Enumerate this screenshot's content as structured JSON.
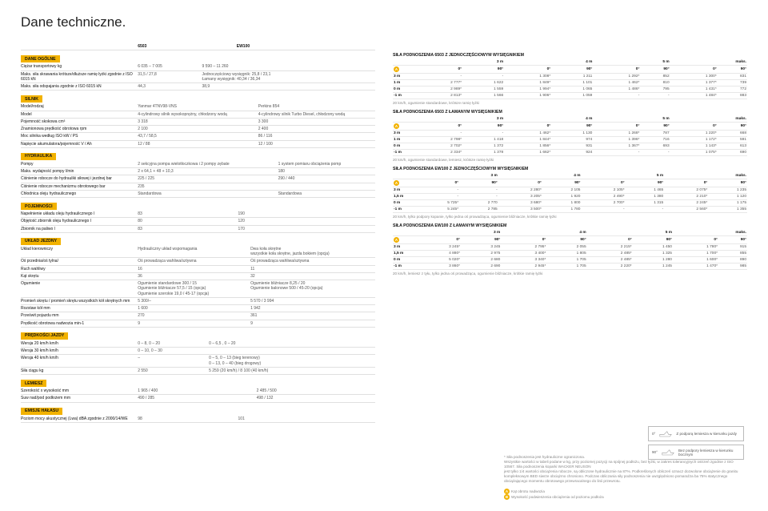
{
  "title": "Dane techniczne.",
  "left": {
    "colHead": [
      "",
      "6503",
      "EW100"
    ],
    "sections": [
      {
        "head": "DANE OGÓLNE",
        "rows": [
          [
            "Ciężar transportowy kg",
            "6 035 – 7 005",
            "9 590 – 11 260"
          ],
          [
            "Maks. siła skrawania krótsze/dłuższe ramię łyżki zgodnie z ISO 6015 kN",
            "31,5 / 27,8",
            "Jednoczęściowy wysięgnik: 25,8 / 23,1\nŁamany wysięgnik: 40,34 / 36,34"
          ],
          [
            "Maks. siła odspajania zgodnie z ISO 6015 kN",
            "44,3",
            "38,9"
          ]
        ]
      },
      {
        "head": "SILNIK",
        "rows": [
          [
            "Model/rodzaj",
            "Yanmar 4TNV98-VNS",
            "Perkins 854"
          ],
          [
            "Model",
            "4-cylindrowy silnik wysokoprężny, chłodzony wodą",
            "4-cylindrowy silnik Turbo Diesel, chłodzony wodą"
          ],
          [
            "Pojemność skokowa cm³",
            "3 318",
            "3 300"
          ],
          [
            "Znamionowa prędkość obrotowa rpm",
            "2 100",
            "2 400"
          ],
          [
            "Moc silnika według ISO kW / PS",
            "43,7 / 58,5",
            "86 / 116"
          ],
          [
            "Napięcie akumulatora/pojemność V / Ah",
            "12 / 88",
            "12 / 100"
          ]
        ]
      },
      {
        "head": "HYDRAULIKA",
        "rows": [
          [
            "Pompy",
            "2 sekcyjna pompa wielotłoczkowa i 2 pompy zębate",
            "1 system pomiaru obciążenia pomp"
          ],
          [
            "Maks. wydajność pompy l/min",
            "2 x 64,1 + 48 + 10,3",
            "180"
          ],
          [
            "Ciśnienie robocze do hydrauliki siłowej i jezdnej bar",
            "225 / 225",
            "290 / 440"
          ],
          [
            "Ciśnienie robocze mechanizmu obrotowego bar",
            "235",
            ""
          ],
          [
            "Chłodnica oleju hydraulicznego",
            "Standardowa",
            "Standardowa"
          ]
        ]
      },
      {
        "head": "POJEMNOŚCI",
        "rows": [
          [
            "Napełnienie układu oleju hydraulicznego l",
            "83",
            "190"
          ],
          [
            "Objętość zbiornik oleju hydraulicznego l",
            "80",
            "120"
          ],
          [
            "Zbiornik na paliwo l",
            "83",
            "170"
          ]
        ]
      },
      {
        "head": "UKŁAD JEZDNY",
        "rows": [
          [
            "Układ kierowniczy",
            "Hydrauliczny układ wspomagania",
            "Dwa koła skrętne\nwszystkie koła skrętne, jazda bokiem (opcja)"
          ],
          [
            "Oś przednia/oś tylna/",
            "Oś prowadząca wahliwa/sztywna",
            "Oś prowadząca wahliwa/sztywna"
          ],
          [
            "Ruch wahliwy",
            "16",
            "11"
          ],
          [
            "Kąt skrętu",
            "36",
            "32"
          ],
          [
            "Ogumienie",
            "Ogumienie standardowe 300 / 15\nOgumienie bliźniacze 57,5 / 15 (opcja)\nOgumienie szerokie 19,0 / 45-17 (opcja)",
            "Ogumienie bliźniacze 8,25 / 20\nOgumienie balonowe 500 / 45-20 (opcja)"
          ],
          [
            "Promień skrętu / promień skrętu wszystkich kół skrętnych mm",
            "5 300/–",
            "5 570 / 3 994"
          ],
          [
            "Rozstaw kół mm",
            "1 600",
            "1 942"
          ],
          [
            "Prześwit pojazdu mm",
            "270",
            "361"
          ],
          [
            "Prędkość obrotowa nadwozia min-1",
            "9",
            "9"
          ]
        ]
      },
      {
        "head": "PRĘDKOŚCI JAZDY",
        "rows": [
          [
            "Wersja 20 km/h km/h",
            "0 – 8, 0 – 20",
            "0 – 6,5 , 0 – 20"
          ],
          [
            "Wersja 30 km/h km/h",
            "0 – 10, 0 – 30",
            ""
          ],
          [
            "Wersja 40 km/h km/h",
            "–",
            "0 – 5, 0 – 13 (bieg terenowy)\n0 – 13, 0 – 40 (bieg drogowy)"
          ],
          [
            "Siła ciągu kg",
            "2 550",
            "5 259 (20 km/h) / 8 100 (40 km/h)"
          ]
        ]
      },
      {
        "head": "LEMIESZ",
        "rows": [
          [
            "Szerokość x wysokość mm",
            "1 965 / 400",
            "2 485 / 500"
          ],
          [
            "Suw nad/pod podłożem mm",
            "490 / 285",
            "498 / 132"
          ]
        ]
      },
      {
        "head": "EMISJE HAŁASU",
        "rows": [
          [
            "Poziom mocy akustycznej (Lwa) dBA zgodnie z 2000/14/WE",
            "98",
            "101"
          ]
        ]
      }
    ]
  },
  "right": {
    "tables": [
      {
        "title": "SIŁA PODNOSZENIA 6503 Z JEDNOCZĘŚCIOWYM WYSIĘGNIKIEM",
        "dist": [
          "3 m",
          "4 m",
          "5 m",
          "maks."
        ],
        "sub": [
          "0°",
          "90°",
          "0°",
          "90°",
          "0°",
          "90°",
          "0°",
          "90°"
        ],
        "marker": "B",
        "rows": [
          [
            "3 m",
            "-",
            "-",
            "1 308*",
            "1 211",
            "1 292*",
            "852",
            "1 300*",
            "831"
          ],
          [
            "1 m",
            "2 777*",
            "1 622",
            "1 849*",
            "1 101",
            "1 462*",
            "810",
            "1 377*",
            "739"
          ],
          [
            "0 m",
            "2 989*",
            "1 559",
            "1 994*",
            "1 065",
            "1 486*",
            "795",
            "1 431*",
            "772"
          ],
          [
            "-1 m",
            "2 813*",
            "1 566",
            "1 906*",
            "1 059",
            "-",
            "-",
            "1 484*",
            "883"
          ]
        ],
        "note": "20 km/h, ogumienie standardowe, krótsze ramię łyżki"
      },
      {
        "title": "SIŁA PODNOSZENIA 6503 Z ŁAMANYM WYSIĘGNIKIEM",
        "dist": [
          "3 m",
          "4 m",
          "5 m",
          "maks."
        ],
        "sub": [
          "0°",
          "90°",
          "0°",
          "90°",
          "0°",
          "90°",
          "0°",
          "90°"
        ],
        "marker": "B",
        "rows": [
          [
            "3 m",
            "-",
            "-",
            "1 462*",
            "1 130",
            "1 268*",
            "787",
            "1 220*",
            "668"
          ],
          [
            "1 m",
            "2 798*",
            "1 418",
            "1 844*",
            "974",
            "1 396*",
            "716",
            "1 172*",
            "591"
          ],
          [
            "0 m",
            "2 702*",
            "1 372",
            "1 856*",
            "931",
            "1 367*",
            "693",
            "1 143*",
            "613"
          ],
          [
            "-1 m",
            "2 334*",
            "1 378",
            "1 662*",
            "924",
            "-",
            "-",
            "1 075*",
            "690"
          ]
        ],
        "note": "20 km/h, ogumienie standardowe, lemiesz, krótsze ramię łyżki"
      },
      {
        "title": "SIŁA PODNOSZENIA EW100 Z JEDNOCZĘŚCIOWYM WYSIĘGNIKIEM",
        "dist": [
          "3 m",
          "4 m",
          "5 m",
          "maks."
        ],
        "sub": [
          "0°",
          "90°",
          "0°",
          "90°",
          "0°",
          "90°",
          "0°",
          "90°"
        ],
        "marker": "B",
        "rows": [
          [
            "3 m",
            "-",
            "-",
            "2 280*",
            "2 105",
            "2 105*",
            "1 465",
            "2 075*",
            "1 235"
          ],
          [
            "1,5 m",
            "-",
            "-",
            "3 205*",
            "1 920",
            "2 490*",
            "1 380",
            "2 210*",
            "1 120"
          ],
          [
            "0 m",
            "5 725*",
            "2 770",
            "3 680*",
            "1 800",
            "2 700*",
            "1 315",
            "2 245*",
            "1 175"
          ],
          [
            "-1 m",
            "5 245*",
            "2 785",
            "3 500*",
            "1 780",
            "-",
            "-",
            "2 560*",
            "1 355"
          ]
        ],
        "note": "20 km/h, tylko podpory kopanie, tylko jedna oś prowadząca, ogumienie bliźniacze, krótkie ramię łyżki"
      },
      {
        "title": "SIŁA PODNOSZENIA EW100 Z ŁAMANYM WYSIĘGNIKIEM",
        "dist": [
          "3 m",
          "4 m",
          "5 m",
          "maks."
        ],
        "sub": [
          "0°",
          "90°",
          "0°",
          "90°",
          "0°",
          "90°",
          "0°",
          "90°"
        ],
        "marker": "B",
        "rows": [
          [
            "3 m",
            "3 245*",
            "3 245",
            "2 795*",
            "2 055",
            "2 215*",
            "1 450",
            "1 780*",
            "915"
          ],
          [
            "1,5 m",
            "4 880*",
            "2 975",
            "3 400*",
            "1 805",
            "2 485*",
            "1 325",
            "1 700*",
            "855"
          ],
          [
            "0 m",
            "5 020*",
            "2 680",
            "3 340*",
            "1 705",
            "2 485*",
            "1 280",
            "1 600*",
            "890"
          ],
          [
            "-1 m",
            "3 860*",
            "2 690",
            "2 945*",
            "1 705",
            "2 220*",
            "1 245",
            "1 470*",
            "985"
          ]
        ],
        "note": "20 km/h, lemiesz z tyłu, tylko jedna oś prowadząca, ogumienie bliźniacze, krótkie ramię łyżki"
      }
    ],
    "diagram": {
      "d0": {
        "angle": "0°",
        "text": "Z podporą lemiesza w kierunku jazdy"
      },
      "d90": {
        "angle": "90°",
        "text": "Bez podpory lemiesza w kierunku bocznym"
      }
    },
    "footAsterisk": "*  Siła podnoszenia jest hydrauliczne ograniczona.\nWszystkie wartości w tabeli podane w kg, przy poziomej pozycji na spójnej podłożu, bez łyżki, w zakres tolerancyjnych ostrzeń zgodnie z ISO 10567. Siła podnoszenia koparki WACKER NEUSON\n jest tylko 1/4 wartości obciążenia robocze, są obliczone hydraulicznie na 87%. Podkreślonych obliczeń oznacz dozwolone obciążenie do granitu kompleksowym BED siwrze obciążmo chroniono. Podczas obliczania siły podnoszenia nie uwzględniono pomaraźza ba 75% statycznego obciążającego momentu obrotowego przewracalnego do linii przewrotu.",
    "footLegendA": "Kąt obrotu nadwozia",
    "footLegendB": "Wysokość podwieszenia obciążenia od poziomu podłoża"
  }
}
